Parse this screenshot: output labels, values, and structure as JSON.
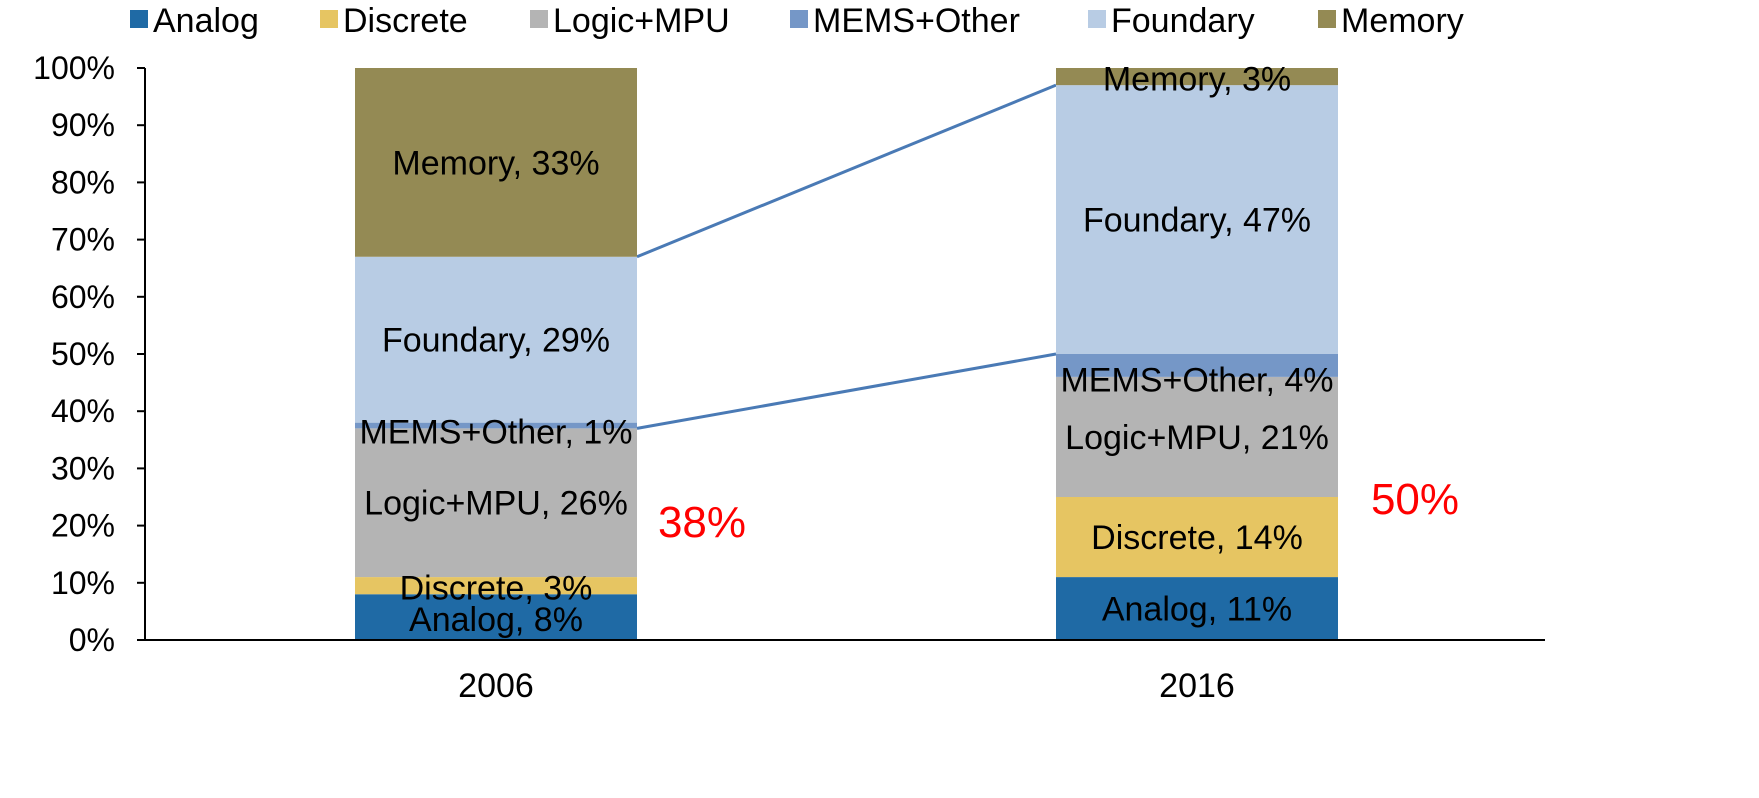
{
  "chart_data": {
    "type": "bar",
    "stacked": true,
    "percent": true,
    "categories": [
      "2006",
      "2016"
    ],
    "series": [
      {
        "name": "Analog",
        "color": "#1f6aa5",
        "values": [
          8,
          11
        ]
      },
      {
        "name": "Discrete",
        "color": "#e6c562",
        "values": [
          3,
          14
        ]
      },
      {
        "name": "Logic+MPU",
        "color": "#b4b4b4",
        "values": [
          26,
          21
        ]
      },
      {
        "name": "MEMS+Other",
        "color": "#7597c7",
        "values": [
          1,
          4
        ]
      },
      {
        "name": "Foundary",
        "color": "#b8cce4",
        "values": [
          29,
          47
        ]
      },
      {
        "name": "Memory",
        "color": "#948a54",
        "values": [
          33,
          3
        ]
      }
    ],
    "data_labels": [
      [
        "Analog, 8%",
        "Analog, 11%"
      ],
      [
        "Discrete, 3%",
        "Discrete, 14%"
      ],
      [
        "Logic+MPU, 26%",
        "Logic+MPU, 21%"
      ],
      [
        "MEMS+Other,  1%",
        "MEMS+Other,  4%"
      ],
      [
        "Foundary, 29%",
        "Foundary, 47%"
      ],
      [
        "Memory, 33%",
        "Memory, 3%"
      ]
    ],
    "y_ticks": [
      "0%",
      "10%",
      "20%",
      "30%",
      "40%",
      "50%",
      "60%",
      "70%",
      "80%",
      "90%",
      "100%"
    ],
    "ylim": [
      0,
      100
    ],
    "legend_position": "top",
    "grid": false,
    "annotations": [
      {
        "text": "38%",
        "category": "2006",
        "color": "#ff0000"
      },
      {
        "text": "50%",
        "category": "2016",
        "color": "#ff0000"
      }
    ],
    "connector_color": "#4a7ab5"
  }
}
